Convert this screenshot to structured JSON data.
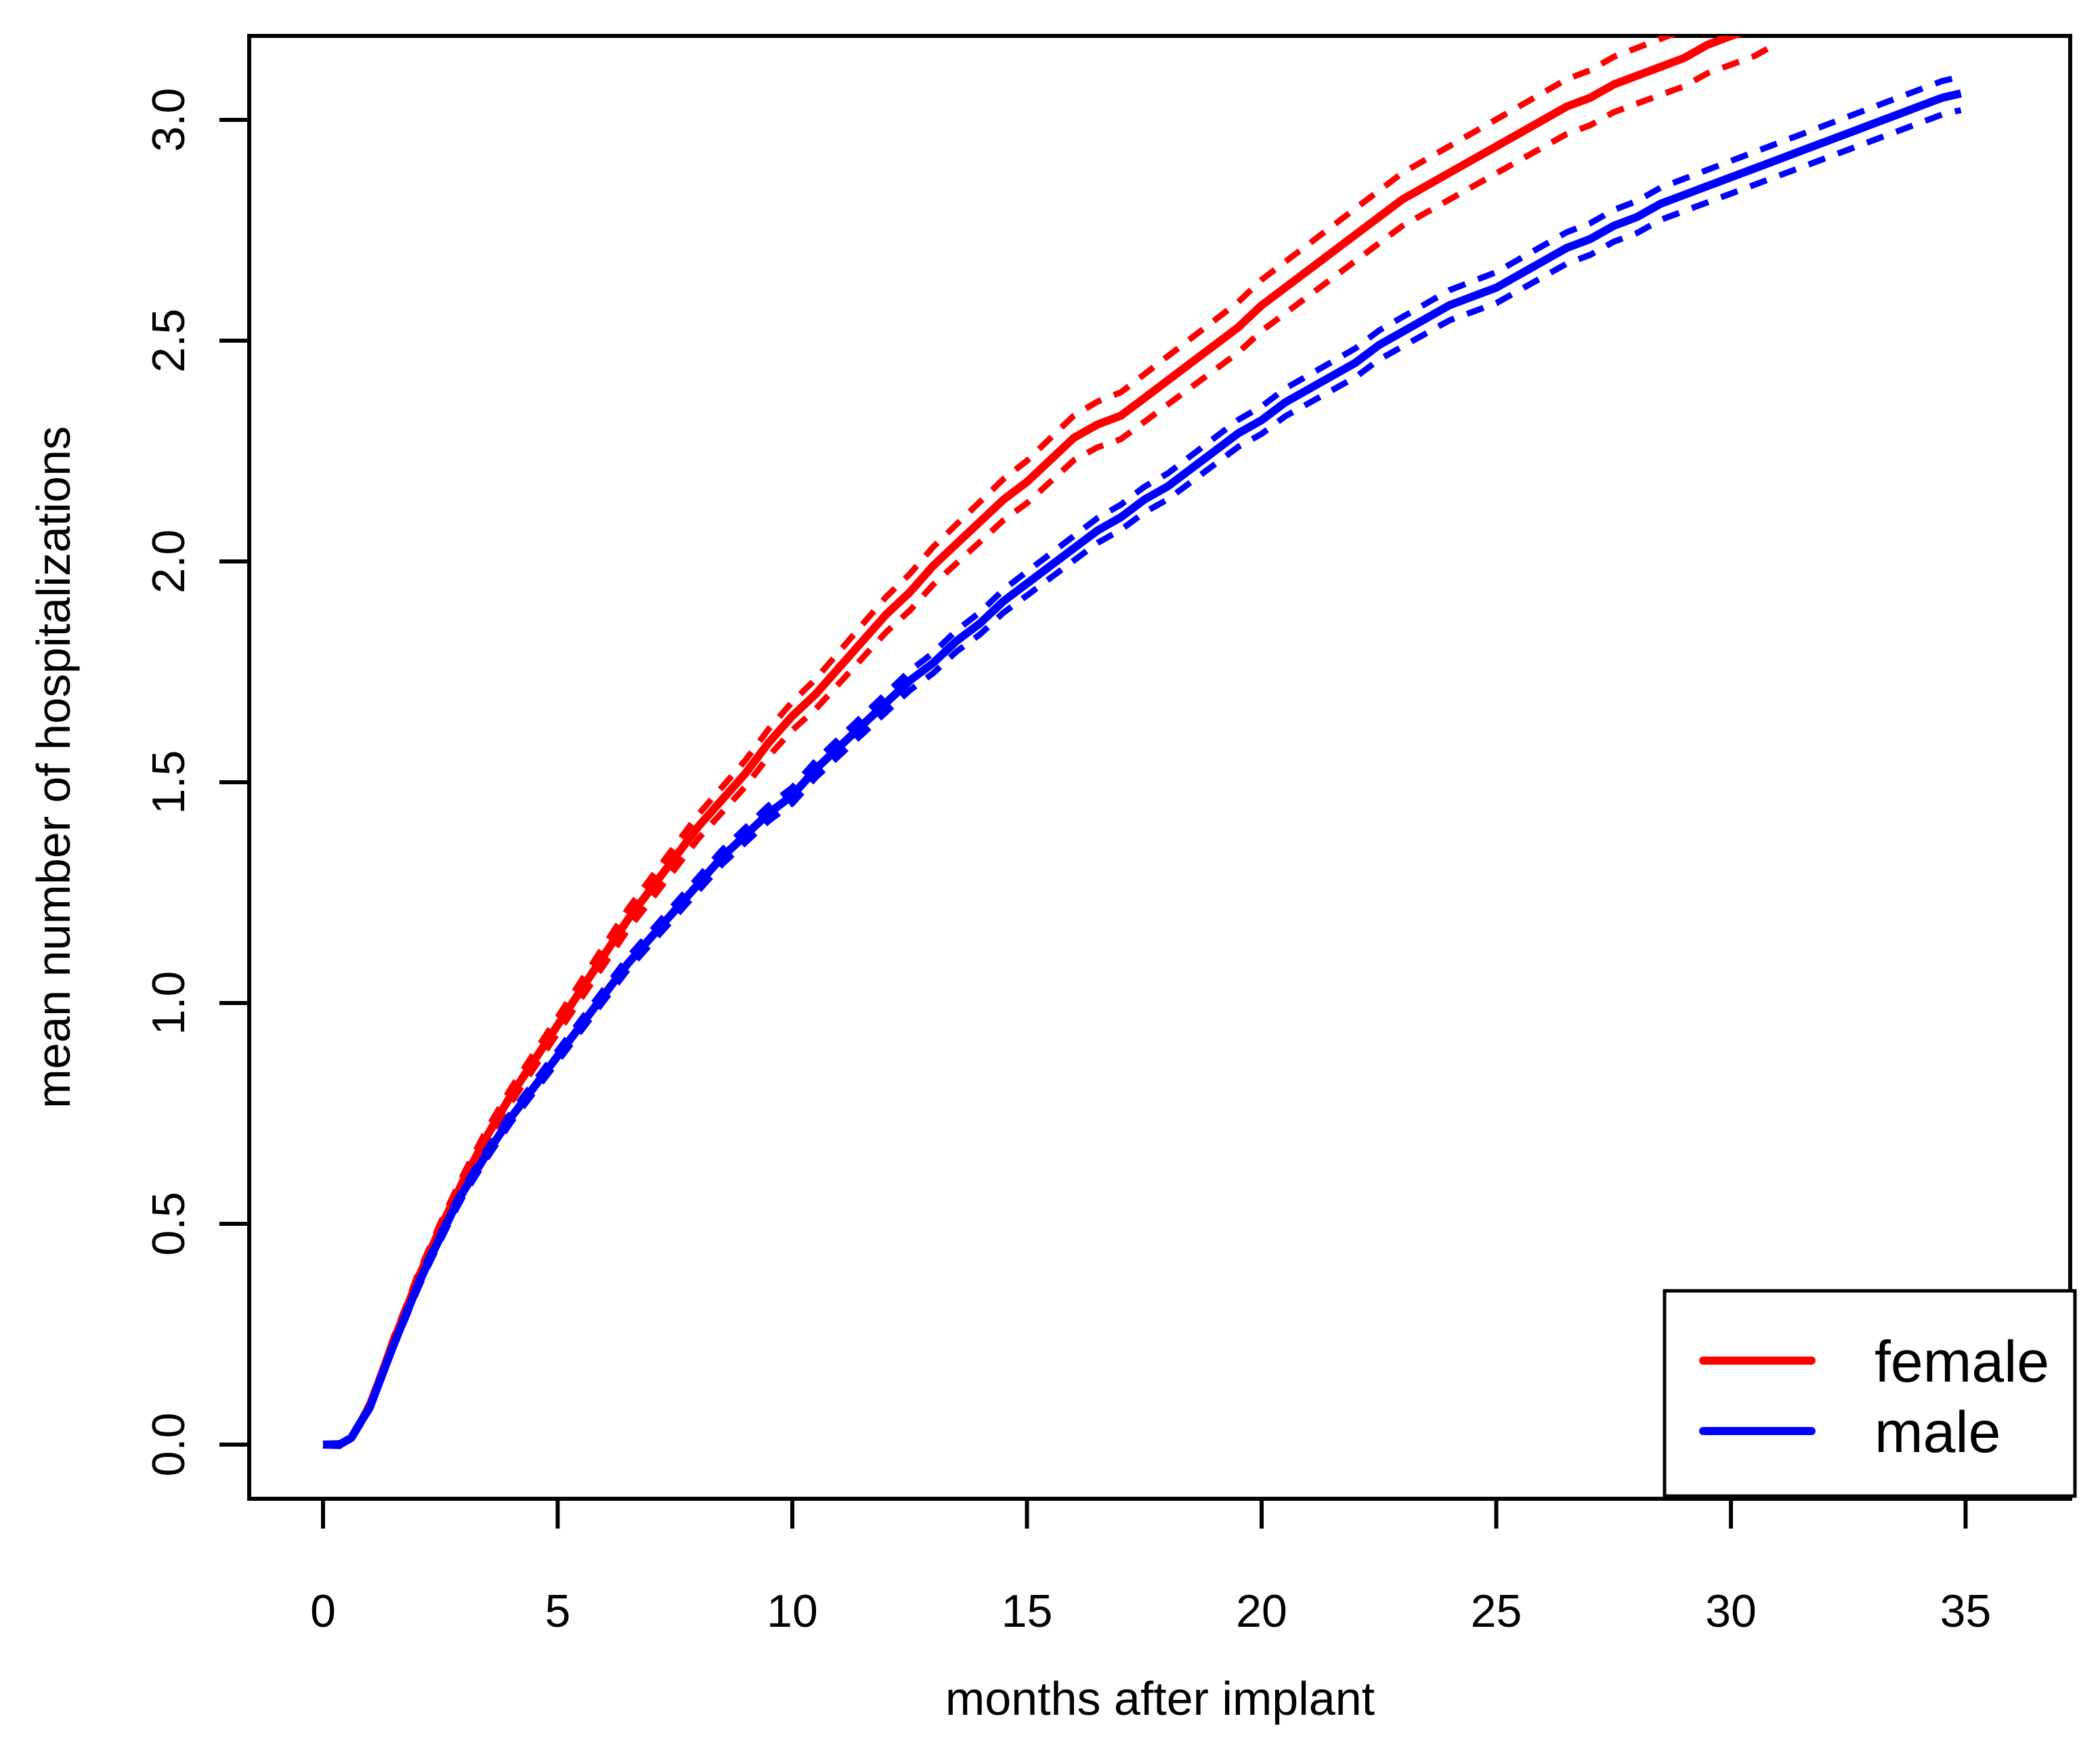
{
  "figure": {
    "background": "#ffffff"
  },
  "chart_data": {
    "type": "line",
    "title": "",
    "xlabel": "months after implant",
    "ylabel": "mean number of hospitalizations",
    "x_ticks": [
      0,
      5,
      10,
      15,
      20,
      25,
      30,
      35
    ],
    "y_tick_labels": [
      "0.0",
      "0.5",
      "1.0",
      "1.5",
      "2.0",
      "2.5",
      "3.0"
    ],
    "y_tick_values": [
      0,
      0.5,
      1.0,
      1.5,
      2.0,
      2.5,
      3.0
    ],
    "xlim": [
      -1.57,
      37.2
    ],
    "ylim": [
      -0.12,
      3.19
    ],
    "grid": false,
    "axis_color": "#000000",
    "legend": {
      "position": "bottomright",
      "entries": [
        {
          "label": "female",
          "color": "#ff0000"
        },
        {
          "label": "male",
          "color": "#0000ff"
        }
      ]
    },
    "series": [
      {
        "name": "female",
        "color": "#ff0000",
        "line": "solid",
        "ci_style": "dashed",
        "points": [
          [
            0,
            0
          ],
          [
            0.35,
            0
          ],
          [
            0.6,
            0.015
          ],
          [
            0.8,
            0.05
          ],
          [
            1,
            0.09
          ],
          [
            1.25,
            0.16
          ],
          [
            1.5,
            0.235
          ],
          [
            1.75,
            0.3
          ],
          [
            2,
            0.37
          ],
          [
            2.25,
            0.43
          ],
          [
            2.5,
            0.49
          ],
          [
            2.75,
            0.545
          ],
          [
            3,
            0.6
          ],
          [
            3.5,
            0.7
          ],
          [
            4,
            0.79
          ],
          [
            4.5,
            0.87
          ],
          [
            5,
            0.95
          ],
          [
            5.5,
            1.03
          ],
          [
            6,
            1.11
          ],
          [
            6.5,
            1.19
          ],
          [
            7,
            1.26
          ],
          [
            7.5,
            1.33
          ],
          [
            8,
            1.4
          ],
          [
            8.5,
            1.46
          ],
          [
            9,
            1.52
          ],
          [
            9.5,
            1.59
          ],
          [
            10,
            1.65
          ],
          [
            10.5,
            1.7
          ],
          [
            11,
            1.76
          ],
          [
            11.5,
            1.82
          ],
          [
            12,
            1.88
          ],
          [
            12.5,
            1.93
          ],
          [
            13,
            1.99
          ],
          [
            13.5,
            2.04
          ],
          [
            14,
            2.09
          ],
          [
            14.5,
            2.14
          ],
          [
            15,
            2.18
          ],
          [
            15.5,
            2.23
          ],
          [
            16,
            2.28
          ],
          [
            16.5,
            2.31
          ],
          [
            17,
            2.33
          ],
          [
            17.5,
            2.37
          ],
          [
            18,
            2.41
          ],
          [
            18.5,
            2.45
          ],
          [
            19,
            2.49
          ],
          [
            19.5,
            2.53
          ],
          [
            20,
            2.58
          ],
          [
            20.5,
            2.62
          ],
          [
            21,
            2.66
          ],
          [
            21.5,
            2.7
          ],
          [
            22,
            2.74
          ],
          [
            22.5,
            2.78
          ],
          [
            23,
            2.82
          ],
          [
            23.5,
            2.85
          ],
          [
            24,
            2.88
          ],
          [
            24.5,
            2.91
          ],
          [
            25,
            2.94
          ],
          [
            25.5,
            2.97
          ],
          [
            26,
            3.0
          ],
          [
            26.5,
            3.03
          ],
          [
            27,
            3.05
          ],
          [
            27.5,
            3.08
          ],
          [
            28,
            3.1
          ],
          [
            28.5,
            3.12
          ],
          [
            29,
            3.14
          ],
          [
            29.5,
            3.17
          ],
          [
            30,
            3.19
          ],
          [
            30.5,
            3.21
          ],
          [
            31,
            3.24
          ]
        ],
        "ci_halfwidth": [
          [
            0,
            0.002
          ],
          [
            1,
            0.006
          ],
          [
            2,
            0.01
          ],
          [
            3,
            0.014
          ],
          [
            5,
            0.018
          ],
          [
            7,
            0.025
          ],
          [
            10,
            0.032
          ],
          [
            12,
            0.04
          ],
          [
            15,
            0.048
          ],
          [
            17,
            0.053
          ],
          [
            20,
            0.058
          ],
          [
            23,
            0.06
          ],
          [
            25,
            0.061
          ],
          [
            28,
            0.063
          ],
          [
            31,
            0.066
          ]
        ]
      },
      {
        "name": "male",
        "color": "#0000ff",
        "line": "solid",
        "ci_style": "dashed",
        "points": [
          [
            0,
            0
          ],
          [
            0.35,
            0
          ],
          [
            0.6,
            0.015
          ],
          [
            0.8,
            0.05
          ],
          [
            1,
            0.085
          ],
          [
            1.25,
            0.155
          ],
          [
            1.5,
            0.225
          ],
          [
            1.75,
            0.29
          ],
          [
            2,
            0.355
          ],
          [
            2.25,
            0.415
          ],
          [
            2.5,
            0.47
          ],
          [
            2.75,
            0.525
          ],
          [
            3,
            0.575
          ],
          [
            3.5,
            0.66
          ],
          [
            4,
            0.74
          ],
          [
            4.5,
            0.81
          ],
          [
            5,
            0.88
          ],
          [
            5.5,
            0.95
          ],
          [
            6,
            1.02
          ],
          [
            6.5,
            1.09
          ],
          [
            7,
            1.15
          ],
          [
            7.5,
            1.21
          ],
          [
            8,
            1.27
          ],
          [
            8.5,
            1.33
          ],
          [
            9,
            1.38
          ],
          [
            9.5,
            1.43
          ],
          [
            10,
            1.47
          ],
          [
            10.5,
            1.53
          ],
          [
            11,
            1.58
          ],
          [
            11.5,
            1.63
          ],
          [
            12,
            1.68
          ],
          [
            12.5,
            1.73
          ],
          [
            13,
            1.77
          ],
          [
            13.5,
            1.82
          ],
          [
            14,
            1.86
          ],
          [
            14.5,
            1.91
          ],
          [
            15,
            1.95
          ],
          [
            15.5,
            1.99
          ],
          [
            16,
            2.03
          ],
          [
            16.5,
            2.07
          ],
          [
            17,
            2.1
          ],
          [
            17.5,
            2.14
          ],
          [
            18,
            2.17
          ],
          [
            18.5,
            2.21
          ],
          [
            19,
            2.25
          ],
          [
            19.5,
            2.29
          ],
          [
            20,
            2.32
          ],
          [
            20.5,
            2.36
          ],
          [
            21,
            2.39
          ],
          [
            21.5,
            2.42
          ],
          [
            22,
            2.45
          ],
          [
            22.5,
            2.49
          ],
          [
            23,
            2.52
          ],
          [
            23.5,
            2.55
          ],
          [
            24,
            2.58
          ],
          [
            24.5,
            2.6
          ],
          [
            25,
            2.62
          ],
          [
            25.5,
            2.65
          ],
          [
            26,
            2.68
          ],
          [
            26.5,
            2.71
          ],
          [
            27,
            2.73
          ],
          [
            27.5,
            2.76
          ],
          [
            28,
            2.78
          ],
          [
            28.5,
            2.81
          ],
          [
            29,
            2.83
          ],
          [
            29.5,
            2.85
          ],
          [
            30,
            2.87
          ],
          [
            30.5,
            2.89
          ],
          [
            31,
            2.91
          ],
          [
            31.5,
            2.93
          ],
          [
            32,
            2.95
          ],
          [
            32.5,
            2.97
          ],
          [
            33,
            2.99
          ],
          [
            33.5,
            3.01
          ],
          [
            34,
            3.03
          ],
          [
            34.5,
            3.05
          ],
          [
            34.9,
            3.06
          ]
        ],
        "ci_halfwidth": [
          [
            0,
            0.002
          ],
          [
            2,
            0.008
          ],
          [
            5,
            0.012
          ],
          [
            7,
            0.014
          ],
          [
            10,
            0.018
          ],
          [
            12,
            0.021
          ],
          [
            15,
            0.027
          ],
          [
            20,
            0.031
          ],
          [
            25,
            0.035
          ],
          [
            30,
            0.037
          ],
          [
            35,
            0.038
          ]
        ]
      }
    ]
  }
}
